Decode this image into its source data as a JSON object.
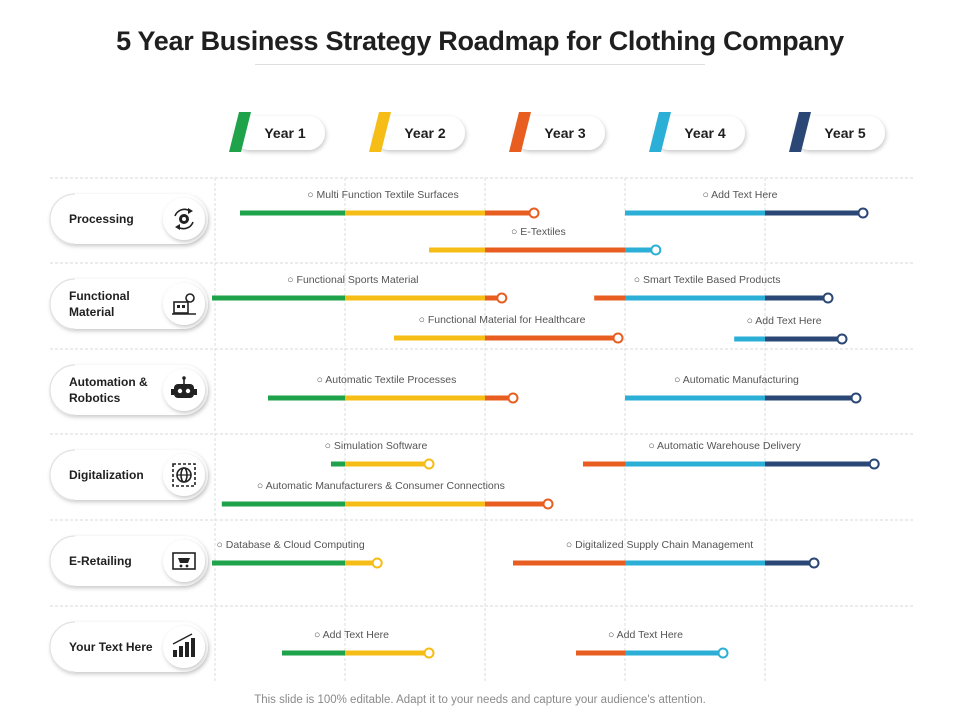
{
  "title": "5 Year Business Strategy Roadmap for Clothing Company",
  "footer": "This slide is 100% editable. Adapt it to your needs and capture your audience's attention.",
  "colors": {
    "year1": "#1ea24a",
    "year2": "#f5bd16",
    "year3": "#e85d20",
    "year4": "#2bafd6",
    "year5": "#2a4775"
  },
  "years": [
    {
      "label": "Year 1",
      "color": "#1ea24a"
    },
    {
      "label": "Year 2",
      "color": "#f5bd16"
    },
    {
      "label": "Year 3",
      "color": "#e85d20"
    },
    {
      "label": "Year 4",
      "color": "#2bafd6"
    },
    {
      "label": "Year  5",
      "color": "#2a4775"
    }
  ],
  "categories": [
    {
      "label": "Processing",
      "icon": "gear-cycle-icon"
    },
    {
      "label": "Functional Material",
      "icon": "machine-icon"
    },
    {
      "label": "Automation & Robotics",
      "icon": "robot-icon"
    },
    {
      "label": "Digitalization",
      "icon": "globe-icon"
    },
    {
      "label": "E-Retailing",
      "icon": "cart-icon"
    },
    {
      "label": "Your Text Here",
      "icon": "bar-chart-icon"
    }
  ],
  "tasks": [
    {
      "row": 0,
      "label": "Multi Function Textile Surfaces",
      "start": 0.25,
      "end": 2.35
    },
    {
      "row": 0,
      "label": "Add Text Here",
      "start": 3.0,
      "end": 4.7
    },
    {
      "row": 0,
      "label": "E-Textiles",
      "start": 1.6,
      "end": 3.22
    },
    {
      "row": 1,
      "label": "Functional Sports Material",
      "start": 0.05,
      "end": 2.12
    },
    {
      "row": 1,
      "label": "Smart Textile Based Products",
      "start": 2.78,
      "end": 4.45
    },
    {
      "row": 1,
      "label": "Functional Material for Healthcare",
      "start": 1.35,
      "end": 2.95
    },
    {
      "row": 1,
      "label": "Add Text Here",
      "start": 3.78,
      "end": 4.55
    },
    {
      "row": 2,
      "label": "Automatic Textile Processes",
      "start": 0.45,
      "end": 2.2
    },
    {
      "row": 2,
      "label": "Automatic Manufacturing",
      "start": 3.0,
      "end": 4.65
    },
    {
      "row": 3,
      "label": "Simulation Software",
      "start": 0.9,
      "end": 1.6
    },
    {
      "row": 3,
      "label": "Automatic Warehouse Delivery",
      "start": 2.7,
      "end": 4.78
    },
    {
      "row": 3,
      "label": "Automatic Manufacturers & Consumer Connections",
      "start": 0.12,
      "end": 2.45
    },
    {
      "row": 4,
      "label": "Database & Cloud Computing",
      "start": 0.05,
      "end": 1.23
    },
    {
      "row": 4,
      "label": "Digitalized Supply Chain Management",
      "start": 2.2,
      "end": 4.35
    },
    {
      "row": 5,
      "label": "Add Text Here",
      "start": 0.55,
      "end": 1.6
    },
    {
      "row": 5,
      "label": "Add Text Here",
      "start": 2.65,
      "end": 3.7
    }
  ]
}
